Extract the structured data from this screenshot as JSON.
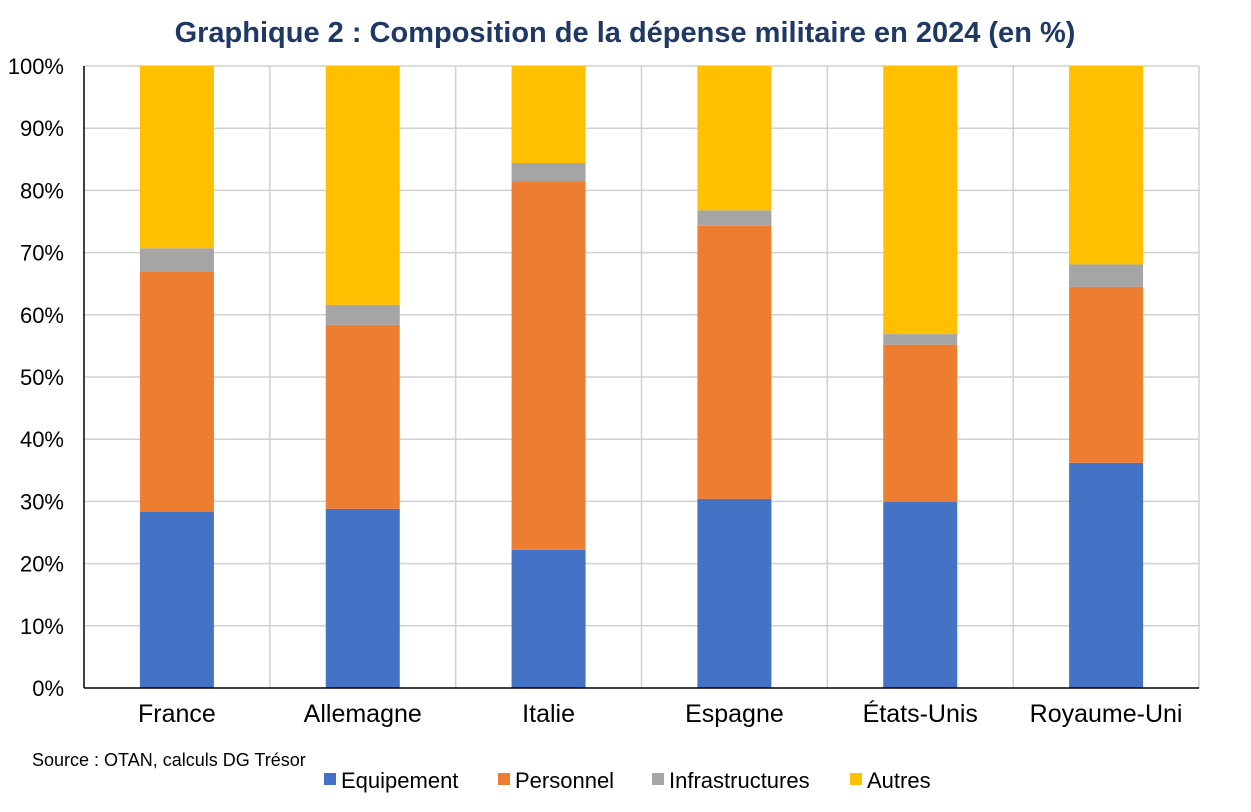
{
  "chart_data": {
    "type": "bar",
    "stacked": true,
    "title": "Graphique 2 : Composition de la dépense militaire en 2024 (en %)",
    "xlabel": "",
    "ylabel": "",
    "ylim": [
      0,
      100
    ],
    "y_ticks": [
      "0%",
      "10%",
      "20%",
      "30%",
      "40%",
      "50%",
      "60%",
      "70%",
      "80%",
      "90%",
      "100%"
    ],
    "grid": true,
    "legend_position": "bottom",
    "categories": [
      "France",
      "Allemagne",
      "Italie",
      "Espagne",
      "États-Unis",
      "Royaume-Uni"
    ],
    "series": [
      {
        "name": "Equipement",
        "color": "#4472c4",
        "values": [
          28.3,
          28.8,
          22.2,
          30.4,
          29.9,
          36.2
        ]
      },
      {
        "name": "Personnel",
        "color": "#ed7d31",
        "values": [
          38.7,
          29.6,
          59.3,
          43.9,
          25.3,
          28.3
        ]
      },
      {
        "name": "Infrastructures",
        "color": "#a5a5a5",
        "values": [
          3.7,
          3.2,
          2.9,
          2.5,
          1.7,
          3.6
        ]
      },
      {
        "name": "Autres",
        "color": "#ffc000",
        "values": [
          29.3,
          38.4,
          15.6,
          23.2,
          43.1,
          31.9
        ]
      }
    ],
    "source": "Source : OTAN, calculs DG Trésor"
  }
}
